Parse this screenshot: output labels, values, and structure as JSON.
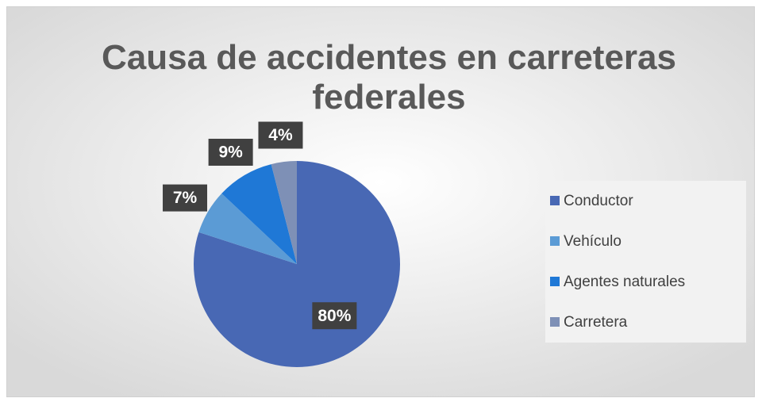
{
  "chart_data": {
    "type": "pie",
    "title": "Causa de accidentes en carreteras federales",
    "categories": [
      "Conductor",
      "Vehículo",
      "Agentes naturales",
      "Carretera"
    ],
    "values": [
      80,
      7,
      9,
      4
    ],
    "value_labels": [
      "80%",
      "7%",
      "9%",
      "4%"
    ],
    "colors": [
      "#4868b4",
      "#5b9bd5",
      "#1f78d6",
      "#7e90b6"
    ],
    "legend": "right"
  }
}
